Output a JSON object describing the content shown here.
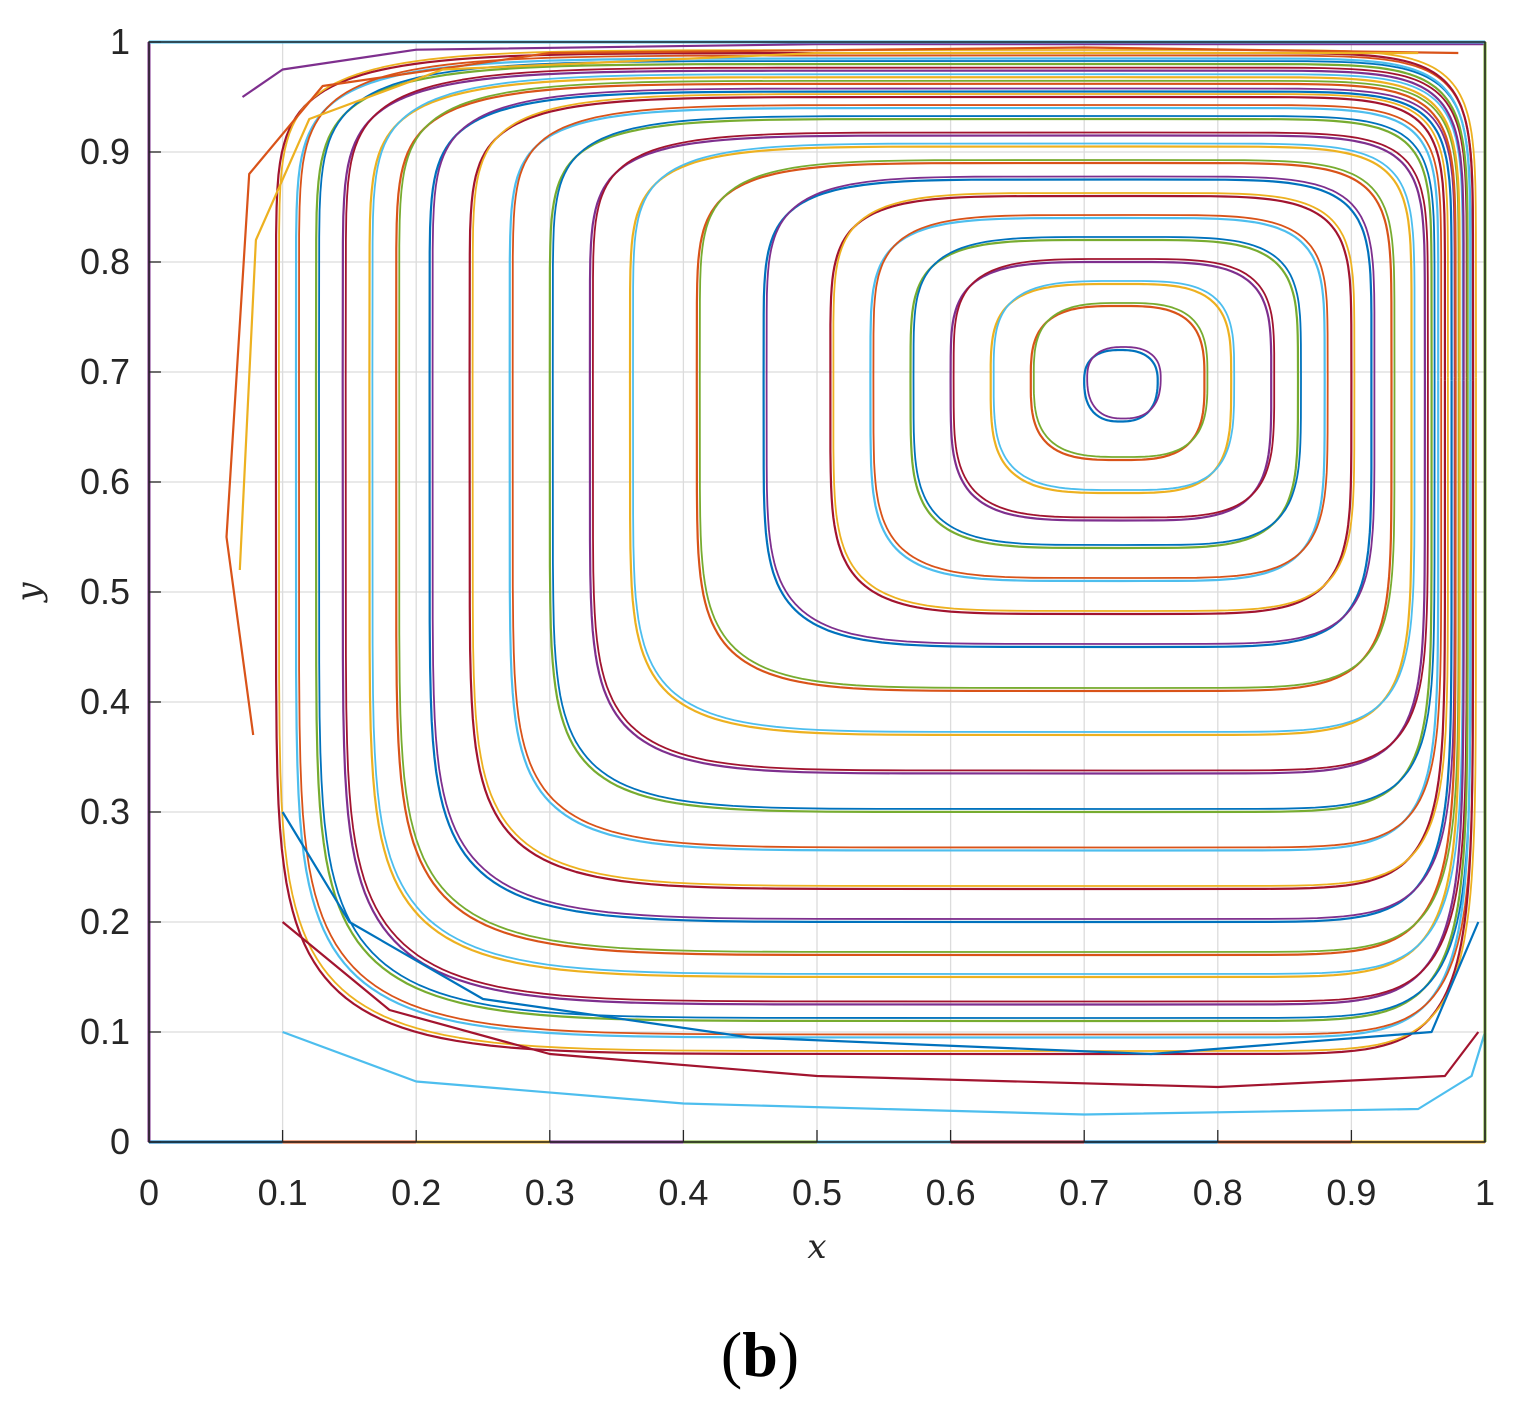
{
  "chart_data": {
    "type": "line",
    "title": "",
    "xlabel": "x",
    "ylabel": "y",
    "xlim": [
      0,
      1
    ],
    "ylim": [
      0,
      1
    ],
    "grid": true,
    "legend": "none",
    "x_ticks": [
      "0",
      "0.1",
      "0.2",
      "0.3",
      "0.4",
      "0.5",
      "0.6",
      "0.7",
      "0.8",
      "0.9",
      "1"
    ],
    "y_ticks": [
      "0",
      "0.1",
      "0.2",
      "0.3",
      "0.4",
      "0.5",
      "0.6",
      "0.7",
      "0.8",
      "0.9",
      "1"
    ],
    "vortex_center": [
      0.727,
      0.692
    ],
    "colors": [
      "#0072BD",
      "#D95319",
      "#EDB120",
      "#7E2F8E",
      "#77AC30",
      "#4DBEEE",
      "#A2142F"
    ],
    "closed_streamlines": [
      {
        "x_left": 0.7,
        "x_right": 0.755,
        "y_bottom": 0.655,
        "y_top": 0.72
      },
      {
        "x_left": 0.66,
        "x_right": 0.79,
        "y_bottom": 0.62,
        "y_top": 0.76
      },
      {
        "x_left": 0.63,
        "x_right": 0.81,
        "y_bottom": 0.59,
        "y_top": 0.78
      },
      {
        "x_left": 0.6,
        "x_right": 0.84,
        "y_bottom": 0.565,
        "y_top": 0.8
      },
      {
        "x_left": 0.57,
        "x_right": 0.86,
        "y_bottom": 0.54,
        "y_top": 0.82
      },
      {
        "x_left": 0.54,
        "x_right": 0.88,
        "y_bottom": 0.51,
        "y_top": 0.84
      },
      {
        "x_left": 0.51,
        "x_right": 0.9,
        "y_bottom": 0.48,
        "y_top": 0.86
      },
      {
        "x_left": 0.46,
        "x_right": 0.915,
        "y_bottom": 0.45,
        "y_top": 0.875
      },
      {
        "x_left": 0.41,
        "x_right": 0.93,
        "y_bottom": 0.41,
        "y_top": 0.89
      },
      {
        "x_left": 0.36,
        "x_right": 0.945,
        "y_bottom": 0.37,
        "y_top": 0.905
      },
      {
        "x_left": 0.33,
        "x_right": 0.955,
        "y_bottom": 0.335,
        "y_top": 0.915
      },
      {
        "x_left": 0.3,
        "x_right": 0.96,
        "y_bottom": 0.3,
        "y_top": 0.93
      },
      {
        "x_left": 0.27,
        "x_right": 0.965,
        "y_bottom": 0.265,
        "y_top": 0.94
      },
      {
        "x_left": 0.24,
        "x_right": 0.97,
        "y_bottom": 0.23,
        "y_top": 0.95
      },
      {
        "x_left": 0.21,
        "x_right": 0.975,
        "y_bottom": 0.2,
        "y_top": 0.955
      },
      {
        "x_left": 0.185,
        "x_right": 0.978,
        "y_bottom": 0.17,
        "y_top": 0.962
      },
      {
        "x_left": 0.165,
        "x_right": 0.981,
        "y_bottom": 0.15,
        "y_top": 0.968
      },
      {
        "x_left": 0.145,
        "x_right": 0.984,
        "y_bottom": 0.125,
        "y_top": 0.974
      },
      {
        "x_left": 0.125,
        "x_right": 0.987,
        "y_bottom": 0.11,
        "y_top": 0.98
      },
      {
        "x_left": 0.11,
        "x_right": 0.989,
        "y_bottom": 0.095,
        "y_top": 0.985
      },
      {
        "x_left": 0.095,
        "x_right": 0.991,
        "y_bottom": 0.08,
        "y_top": 0.99
      }
    ],
    "open_streamlines": [
      {
        "points": [
          [
            0.1,
            0.1
          ],
          [
            0.2,
            0.055
          ],
          [
            0.4,
            0.035
          ],
          [
            0.7,
            0.025
          ],
          [
            0.95,
            0.03
          ],
          [
            0.99,
            0.06
          ],
          [
            1.0,
            0.1
          ]
        ]
      },
      {
        "points": [
          [
            0.1,
            0.2
          ],
          [
            0.18,
            0.12
          ],
          [
            0.3,
            0.08
          ],
          [
            0.5,
            0.06
          ],
          [
            0.8,
            0.05
          ],
          [
            0.97,
            0.06
          ],
          [
            0.995,
            0.1
          ]
        ]
      },
      {
        "points": [
          [
            0.1,
            0.3
          ],
          [
            0.15,
            0.2
          ],
          [
            0.25,
            0.13
          ],
          [
            0.45,
            0.095
          ],
          [
            0.75,
            0.08
          ],
          [
            0.96,
            0.1
          ],
          [
            0.995,
            0.2
          ]
        ]
      },
      {
        "points": [
          [
            0.078,
            0.37
          ],
          [
            0.058,
            0.55
          ],
          [
            0.075,
            0.88
          ],
          [
            0.13,
            0.96
          ],
          [
            0.3,
            0.99
          ],
          [
            0.7,
            0.995
          ],
          [
            0.98,
            0.99
          ]
        ]
      },
      {
        "points": [
          [
            0.068,
            0.52
          ],
          [
            0.08,
            0.82
          ],
          [
            0.12,
            0.93
          ],
          [
            0.22,
            0.975
          ],
          [
            0.5,
            0.99
          ],
          [
            0.95,
            0.99
          ]
        ]
      },
      {
        "points": [
          [
            0.07,
            0.95
          ],
          [
            0.1,
            0.975
          ],
          [
            0.2,
            0.993
          ],
          [
            0.5,
            0.998
          ],
          [
            1.0,
            0.998
          ]
        ]
      }
    ],
    "boundary_segments": [
      {
        "x": [
          0.0,
          0.1
        ],
        "y": [
          0.0,
          0.0
        ]
      },
      {
        "x": [
          0.1,
          0.2
        ],
        "y": [
          0.0,
          0.0
        ]
      },
      {
        "x": [
          0.2,
          0.3
        ],
        "y": [
          0.0,
          0.0
        ]
      },
      {
        "x": [
          0.3,
          0.4
        ],
        "y": [
          0.0,
          0.0
        ]
      },
      {
        "x": [
          0.4,
          0.5
        ],
        "y": [
          0.0,
          0.0
        ]
      },
      {
        "x": [
          0.5,
          0.6
        ],
        "y": [
          0.0,
          0.0
        ]
      },
      {
        "x": [
          0.6,
          0.7
        ],
        "y": [
          0.0,
          0.0
        ]
      },
      {
        "x": [
          0.7,
          0.8
        ],
        "y": [
          0.0,
          0.0
        ]
      },
      {
        "x": [
          0.8,
          0.9
        ],
        "y": [
          0.0,
          0.0
        ]
      },
      {
        "x": [
          0.9,
          1.0
        ],
        "y": [
          0.0,
          0.0
        ]
      },
      {
        "x": [
          0.0,
          0.0
        ],
        "y": [
          0.0,
          1.0
        ]
      },
      {
        "x": [
          1.0,
          1.0
        ],
        "y": [
          0.0,
          1.0
        ]
      },
      {
        "x": [
          0.0,
          1.0
        ],
        "y": [
          1.0,
          1.0
        ]
      }
    ]
  },
  "panel_label": "(b)"
}
